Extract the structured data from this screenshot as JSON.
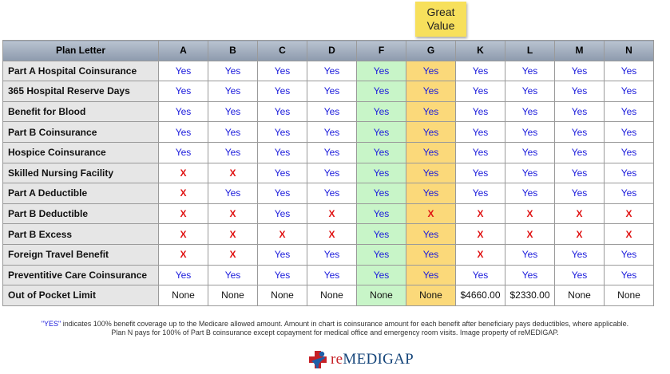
{
  "badge": {
    "line1": "Great",
    "line2": "Value"
  },
  "header": {
    "label": "Plan Letter",
    "plans": [
      "A",
      "B",
      "C",
      "D",
      "F",
      "G",
      "K",
      "L",
      "M",
      "N"
    ]
  },
  "rows": [
    {
      "label": "Part A Hospital Coinsurance",
      "cells": [
        "Yes",
        "Yes",
        "Yes",
        "Yes",
        "Yes",
        "Yes",
        "Yes",
        "Yes",
        "Yes",
        "Yes"
      ]
    },
    {
      "label": "365 Hospital Reserve Days",
      "cells": [
        "Yes",
        "Yes",
        "Yes",
        "Yes",
        "Yes",
        "Yes",
        "Yes",
        "Yes",
        "Yes",
        "Yes"
      ]
    },
    {
      "label": "Benefit for Blood",
      "cells": [
        "Yes",
        "Yes",
        "Yes",
        "Yes",
        "Yes",
        "Yes",
        "Yes",
        "Yes",
        "Yes",
        "Yes"
      ]
    },
    {
      "label": "Part B Coinsurance",
      "cells": [
        "Yes",
        "Yes",
        "Yes",
        "Yes",
        "Yes",
        "Yes",
        "Yes",
        "Yes",
        "Yes",
        "Yes"
      ]
    },
    {
      "label": "Hospice Coinsurance",
      "cells": [
        "Yes",
        "Yes",
        "Yes",
        "Yes",
        "Yes",
        "Yes",
        "Yes",
        "Yes",
        "Yes",
        "Yes"
      ]
    },
    {
      "label": "Skilled Nursing Facility",
      "cells": [
        "X",
        "X",
        "Yes",
        "Yes",
        "Yes",
        "Yes",
        "Yes",
        "Yes",
        "Yes",
        "Yes"
      ]
    },
    {
      "label": "Part A Deductible",
      "cells": [
        "X",
        "Yes",
        "Yes",
        "Yes",
        "Yes",
        "Yes",
        "Yes",
        "Yes",
        "Yes",
        "Yes"
      ]
    },
    {
      "label": "Part B Deductible",
      "cells": [
        "X",
        "X",
        "Yes",
        "X",
        "Yes",
        "X",
        "X",
        "X",
        "X",
        "X"
      ]
    },
    {
      "label": "Part B Excess",
      "cells": [
        "X",
        "X",
        "X",
        "X",
        "Yes",
        "Yes",
        "X",
        "X",
        "X",
        "X"
      ]
    },
    {
      "label": "Foreign Travel Benefit",
      "cells": [
        "X",
        "X",
        "Yes",
        "Yes",
        "Yes",
        "Yes",
        "X",
        "Yes",
        "Yes",
        "Yes"
      ]
    },
    {
      "label": "Preventitive Care Coinsurance",
      "cells": [
        "Yes",
        "Yes",
        "Yes",
        "Yes",
        "Yes",
        "Yes",
        "Yes",
        "Yes",
        "Yes",
        "Yes"
      ]
    },
    {
      "label": "Out of Pocket Limit",
      "cells": [
        "None",
        "None",
        "None",
        "None",
        "None",
        "None",
        "$4660.00",
        "$2330.00",
        "None",
        "None"
      ]
    }
  ],
  "footnote": {
    "highlight": "\"YES\"",
    "line1_rest": " indicates 100% benefit coverage up to the Medicare allowed amount.  Amount in chart is coinsurance amount for each benefit after beneficiary pays deductibles, where applicable.",
    "line2": "Plan N pays for 100% of Part B coinsurance except copayment for medical office and emergency room visits.  Image property of reMEDIGAP."
  },
  "logo": {
    "prefix": "re",
    "main": "MEDIGAP",
    "mark": "medical-cross-figure-icon"
  },
  "colors": {
    "yes": "#1a1adb",
    "x": "#e01515",
    "highlight_F": "#c8f5c8",
    "highlight_G": "#fbd97a",
    "badge": "#f7e05c",
    "header": "#8d9aad"
  }
}
